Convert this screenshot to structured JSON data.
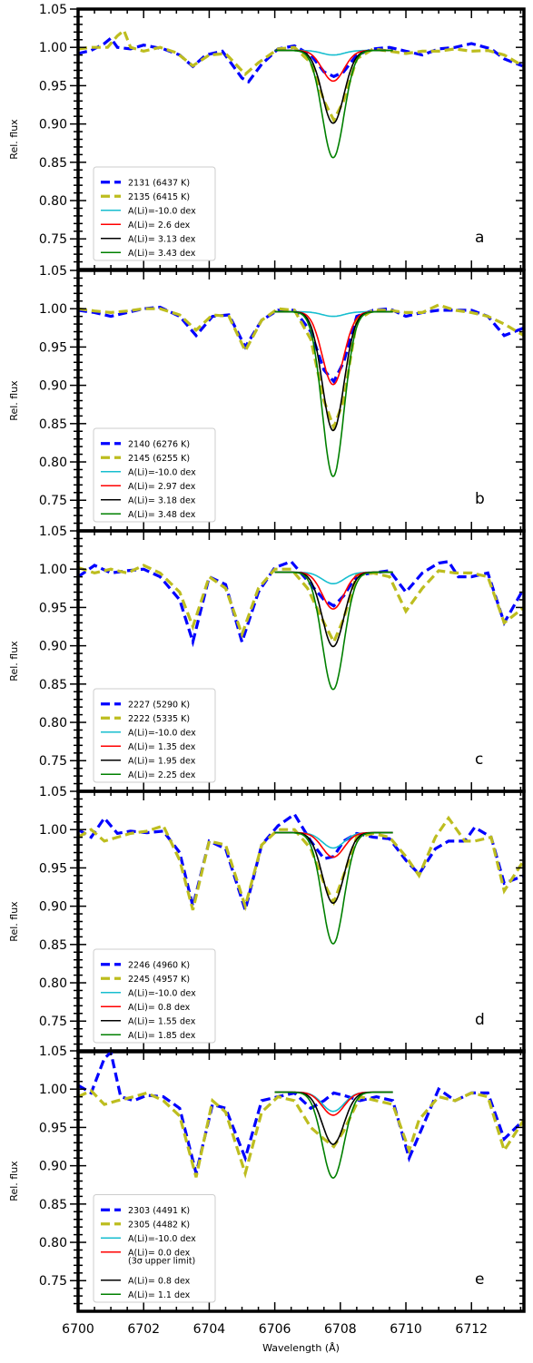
{
  "chart_data": [
    {
      "type": "line",
      "panel_label": "a",
      "ylabel": "Rel. flux",
      "xlabel": "",
      "xlim": [
        6700,
        6713.6
      ],
      "ylim": [
        0.71,
        1.05
      ],
      "yticks": [
        "0.75",
        "0.80",
        "0.85",
        "0.90",
        "0.95",
        "1.00",
        "1.05"
      ],
      "xticks": [],
      "grid": false,
      "legend_position": "lower-left",
      "series": [
        {
          "name": "2131 (6437 K)",
          "color": "#0000ff",
          "style": "dash",
          "x": [
            6700,
            6700.4,
            6700.8,
            6701.0,
            6701.2,
            6701.6,
            6702.0,
            6702.6,
            6703.1,
            6703.5,
            6703.9,
            6704.4,
            6705.0,
            6705.2,
            6705.6,
            6706.1,
            6706.6,
            6707.1,
            6707.5,
            6707.8,
            6708.1,
            6708.5,
            6709.0,
            6709.5,
            6710.0,
            6710.5,
            6711.0,
            6711.5,
            6712.0,
            6712.6,
            6713.0,
            6713.6
          ],
          "y": [
            0.992,
            0.996,
            1.005,
            1.012,
            1.0,
            0.998,
            1.003,
            0.998,
            0.99,
            0.975,
            0.99,
            0.995,
            0.96,
            0.955,
            0.978,
            0.998,
            1.002,
            0.99,
            0.968,
            0.962,
            0.968,
            0.99,
            0.998,
            1.0,
            0.995,
            0.99,
            0.998,
            1.0,
            1.005,
            0.998,
            0.985,
            0.975
          ]
        },
        {
          "name": "2135 (6415 K)",
          "color": "#bdbd1f",
          "style": "dash",
          "x": [
            6700,
            6700.4,
            6700.9,
            6701.2,
            6701.4,
            6701.6,
            6702.0,
            6702.5,
            6703.0,
            6703.5,
            6704.0,
            6704.5,
            6705.1,
            6705.5,
            6706.1,
            6706.6,
            6707.1,
            6707.5,
            6707.8,
            6708.1,
            6708.5,
            6709.0,
            6709.5,
            6710.0,
            6710.5,
            6711.0,
            6711.5,
            6712.0,
            6712.5,
            6713.0,
            6713.6
          ],
          "y": [
            0.998,
            1.0,
            1.0,
            1.015,
            1.022,
            1.0,
            0.995,
            1.0,
            0.993,
            0.976,
            0.99,
            0.992,
            0.965,
            0.98,
            0.998,
            1.0,
            0.98,
            0.93,
            0.905,
            0.93,
            0.985,
            0.998,
            0.995,
            0.992,
            0.995,
            0.995,
            0.998,
            0.995,
            0.996,
            0.99,
            0.975
          ]
        },
        {
          "name": "A(Li)=-10.0 dex",
          "color": "#17becf",
          "style": "solid",
          "depth": 0.006
        },
        {
          "name": "A(Li)= 2.6 dex",
          "color": "#ff0000",
          "style": "solid",
          "depth": 0.04
        },
        {
          "name": "A(Li)= 3.13 dex",
          "color": "#000000",
          "style": "solid",
          "depth": 0.095
        },
        {
          "name": "A(Li)= 3.43 dex",
          "color": "#008000",
          "style": "solid",
          "depth": 0.14
        }
      ]
    },
    {
      "type": "line",
      "panel_label": "b",
      "ylabel": "Rel. flux",
      "xlabel": "",
      "xlim": [
        6700,
        6713.6
      ],
      "ylim": [
        0.71,
        1.05
      ],
      "yticks": [
        "0.75",
        "0.80",
        "0.85",
        "0.90",
        "0.95",
        "1.00",
        "1.05"
      ],
      "xticks": [],
      "grid": false,
      "legend_position": "lower-left",
      "series": [
        {
          "name": "2140 (6276 K)",
          "color": "#0000ff",
          "style": "dash",
          "x": [
            6700,
            6700.5,
            6701.0,
            6701.5,
            6702.0,
            6702.5,
            6703.1,
            6703.6,
            6704.1,
            6704.6,
            6705.1,
            6705.6,
            6706.1,
            6706.6,
            6707.1,
            6707.5,
            6707.8,
            6708.1,
            6708.5,
            6709.0,
            6709.5,
            6710.0,
            6710.5,
            6711.0,
            6711.5,
            6712.0,
            6712.5,
            6713.0,
            6713.6
          ],
          "y": [
            0.998,
            0.995,
            0.99,
            0.995,
            1.0,
            1.002,
            0.99,
            0.965,
            0.99,
            0.992,
            0.95,
            0.985,
            0.998,
            0.998,
            0.97,
            0.92,
            0.905,
            0.93,
            0.99,
            0.998,
            1.0,
            0.99,
            0.995,
            0.998,
            0.998,
            0.998,
            0.99,
            0.965,
            0.975
          ]
        },
        {
          "name": "2145 (6255 K)",
          "color": "#bdbd1f",
          "style": "dash",
          "x": [
            6700,
            6700.5,
            6701.0,
            6701.5,
            6702.0,
            6702.5,
            6703.1,
            6703.6,
            6704.1,
            6704.6,
            6705.1,
            6705.6,
            6706.1,
            6706.6,
            6707.1,
            6707.5,
            6707.8,
            6708.1,
            6708.5,
            6709.0,
            6709.5,
            6710.0,
            6710.5,
            6711.0,
            6711.5,
            6712.0,
            6712.5,
            6713.0,
            6713.6
          ],
          "y": [
            1.0,
            0.997,
            0.995,
            0.997,
            1.0,
            1.0,
            0.992,
            0.972,
            0.992,
            0.99,
            0.945,
            0.985,
            1.0,
            0.998,
            0.96,
            0.88,
            0.845,
            0.88,
            0.985,
            0.998,
            0.998,
            0.995,
            0.995,
            1.005,
            0.998,
            0.995,
            0.99,
            0.98,
            0.965
          ]
        },
        {
          "name": "A(Li)=-10.0 dex",
          "color": "#17becf",
          "style": "solid",
          "depth": 0.006
        },
        {
          "name": "A(Li)= 2.97 dex",
          "color": "#ff0000",
          "style": "solid",
          "depth": 0.095
        },
        {
          "name": "A(Li)= 3.18 dex",
          "color": "#000000",
          "style": "solid",
          "depth": 0.155
        },
        {
          "name": "A(Li)= 3.48 dex",
          "color": "#008000",
          "style": "solid",
          "depth": 0.215
        }
      ]
    },
    {
      "type": "line",
      "panel_label": "c",
      "ylabel": "Rel. flux",
      "xlabel": "",
      "xlim": [
        6700,
        6713.6
      ],
      "ylim": [
        0.71,
        1.05
      ],
      "yticks": [
        "0.75",
        "0.80",
        "0.85",
        "0.90",
        "0.95",
        "1.00",
        "1.05"
      ],
      "xticks": [],
      "grid": false,
      "legend_position": "lower-left",
      "series": [
        {
          "name": "2227 (5290 K)",
          "color": "#0000ff",
          "style": "dash",
          "x": [
            6700,
            6700.5,
            6701.0,
            6701.5,
            6702.0,
            6702.5,
            6703.1,
            6703.5,
            6704.0,
            6704.5,
            6705.0,
            6705.5,
            6706.0,
            6706.5,
            6707.0,
            6707.5,
            6707.8,
            6708.1,
            6708.5,
            6709.0,
            6709.5,
            6710.0,
            6710.5,
            6711.0,
            6711.3,
            6711.6,
            6712.0,
            6712.5,
            6713.0,
            6713.6
          ],
          "y": [
            0.99,
            1.005,
            0.995,
            0.998,
            1.0,
            0.99,
            0.96,
            0.905,
            0.99,
            0.98,
            0.905,
            0.97,
            1.002,
            1.01,
            0.985,
            0.96,
            0.952,
            0.965,
            0.992,
            0.995,
            0.998,
            0.97,
            0.995,
            1.008,
            1.01,
            0.99,
            0.99,
            0.995,
            0.93,
            0.975
          ]
        },
        {
          "name": "2222 (5335 K)",
          "color": "#bdbd1f",
          "style": "dash",
          "x": [
            6700,
            6700.5,
            6701.0,
            6701.5,
            6702.0,
            6702.5,
            6703.1,
            6703.5,
            6704.0,
            6704.5,
            6705.0,
            6705.5,
            6706.0,
            6706.5,
            6707.0,
            6707.5,
            6707.8,
            6708.1,
            6708.5,
            6709.0,
            6709.5,
            6710.0,
            6710.5,
            6711.0,
            6711.5,
            6712.0,
            6712.5,
            6713.0,
            6713.6
          ],
          "y": [
            1.002,
            0.995,
            1.0,
            0.995,
            1.005,
            0.995,
            0.97,
            0.925,
            0.99,
            0.975,
            0.915,
            0.975,
            1.0,
            1.0,
            0.975,
            0.93,
            0.905,
            0.935,
            0.992,
            0.995,
            0.99,
            0.945,
            0.975,
            0.998,
            0.995,
            0.995,
            0.99,
            0.93,
            0.95
          ]
        },
        {
          "name": "A(Li)=-10.0 dex",
          "color": "#17becf",
          "style": "solid",
          "depth": 0.015
        },
        {
          "name": "A(Li)= 1.35 dex",
          "color": "#ff0000",
          "style": "solid",
          "depth": 0.048
        },
        {
          "name": "A(Li)= 1.95 dex",
          "color": "#000000",
          "style": "solid",
          "depth": 0.097
        },
        {
          "name": "A(Li)= 2.25 dex",
          "color": "#008000",
          "style": "solid",
          "depth": 0.153
        }
      ]
    },
    {
      "type": "line",
      "panel_label": "d",
      "ylabel": "Rel. flux",
      "xlabel": "",
      "xlim": [
        6700,
        6713.6
      ],
      "ylim": [
        0.71,
        1.05
      ],
      "yticks": [
        "0.75",
        "0.80",
        "0.85",
        "0.90",
        "0.95",
        "1.00",
        "1.05"
      ],
      "xticks": [],
      "grid": false,
      "legend_position": "lower-left",
      "series": [
        {
          "name": "2246 (4960 K)",
          "color": "#0000ff",
          "style": "dash",
          "x": [
            6700,
            6700.4,
            6700.8,
            6701.2,
            6701.6,
            6702.1,
            6702.6,
            6703.1,
            6703.5,
            6704.0,
            6704.5,
            6705.1,
            6705.6,
            6706.1,
            6706.6,
            6707.1,
            6707.5,
            6707.8,
            6708.1,
            6708.5,
            6709.0,
            6709.5,
            6710.0,
            6710.4,
            6710.9,
            6711.3,
            6711.8,
            6712.1,
            6712.6,
            6713.0,
            6713.6
          ],
          "y": [
            1.0,
            0.99,
            1.015,
            0.995,
            0.998,
            0.996,
            0.998,
            0.97,
            0.9,
            0.985,
            0.975,
            0.895,
            0.98,
            1.005,
            1.02,
            0.985,
            0.962,
            0.965,
            0.985,
            0.995,
            0.99,
            0.988,
            0.96,
            0.942,
            0.975,
            0.985,
            0.985,
            1.003,
            0.99,
            0.93,
            0.94
          ]
        },
        {
          "name": "2245 (4957 K)",
          "color": "#bdbd1f",
          "style": "dash",
          "x": [
            6700,
            6700.4,
            6700.8,
            6701.2,
            6701.6,
            6702.1,
            6702.6,
            6703.1,
            6703.5,
            6704.0,
            6704.5,
            6705.1,
            6705.6,
            6706.1,
            6706.6,
            6707.1,
            6707.5,
            6707.8,
            6708.1,
            6708.5,
            6709.0,
            6709.5,
            6710.0,
            6710.4,
            6710.9,
            6711.3,
            6711.8,
            6712.1,
            6712.6,
            6713.0,
            6713.6
          ],
          "y": [
            0.99,
            1.0,
            0.985,
            0.99,
            0.995,
            0.998,
            1.005,
            0.96,
            0.895,
            0.985,
            0.98,
            0.9,
            0.98,
            1.0,
            1.0,
            0.975,
            0.93,
            0.905,
            0.94,
            0.99,
            0.995,
            0.99,
            0.965,
            0.94,
            0.99,
            1.015,
            0.985,
            0.985,
            0.99,
            0.92,
            0.96
          ]
        },
        {
          "name": "A(Li)=-10.0 dex",
          "color": "#17becf",
          "style": "solid",
          "depth": 0.02
        },
        {
          "name": "A(Li)= 0.8 dex",
          "color": "#ff0000",
          "style": "solid",
          "depth": 0.032
        },
        {
          "name": "A(Li)= 1.55 dex",
          "color": "#000000",
          "style": "solid",
          "depth": 0.092
        },
        {
          "name": "A(Li)= 1.85 dex",
          "color": "#008000",
          "style": "solid",
          "depth": 0.145
        }
      ]
    },
    {
      "type": "line",
      "panel_label": "e",
      "ylabel": "Rel. flux",
      "xlabel": "Wavelength (Å)",
      "xlim": [
        6700,
        6713.6
      ],
      "ylim": [
        0.71,
        1.05
      ],
      "yticks": [
        "0.75",
        "0.80",
        "0.85",
        "0.90",
        "0.95",
        "1.00",
        "1.05"
      ],
      "xticks": [
        "6700",
        "6702",
        "6704",
        "6706",
        "6708",
        "6710",
        "6712"
      ],
      "grid": false,
      "legend_position": "lower-left",
      "series": [
        {
          "name": "2303 (4491 K)",
          "color": "#0000ff",
          "style": "dash",
          "x": [
            6700,
            6700.4,
            6700.8,
            6701.0,
            6701.3,
            6701.7,
            6702.1,
            6702.6,
            6703.1,
            6703.6,
            6704.1,
            6704.5,
            6705.1,
            6705.6,
            6706.1,
            6706.6,
            6707.1,
            6707.5,
            6707.8,
            6708.1,
            6708.6,
            6709.1,
            6709.6,
            6710.1,
            6710.4,
            6711.0,
            6711.5,
            6712.0,
            6712.5,
            6713.0,
            6713.6
          ],
          "y": [
            1.005,
            0.995,
            1.04,
            1.048,
            0.99,
            0.985,
            0.992,
            0.99,
            0.975,
            0.89,
            0.98,
            0.975,
            0.91,
            0.985,
            0.99,
            0.995,
            0.975,
            0.985,
            0.995,
            0.992,
            0.985,
            0.99,
            0.985,
            0.91,
            0.94,
            1.0,
            0.985,
            0.995,
            0.995,
            0.935,
            0.96
          ]
        },
        {
          "name": "2305 (4482 K)",
          "color": "#bdbd1f",
          "style": "dash",
          "x": [
            6700,
            6700.4,
            6700.8,
            6701.2,
            6701.7,
            6702.1,
            6702.6,
            6703.1,
            6703.6,
            6704.1,
            6704.5,
            6705.1,
            6705.6,
            6706.1,
            6706.6,
            6707.1,
            6707.5,
            6707.8,
            6708.1,
            6708.6,
            6709.1,
            6709.6,
            6710.1,
            6710.4,
            6711.0,
            6711.5,
            6712.0,
            6712.5,
            6713.0,
            6713.6
          ],
          "y": [
            0.99,
            0.998,
            0.98,
            0.985,
            0.99,
            0.995,
            0.985,
            0.965,
            0.885,
            0.985,
            0.97,
            0.89,
            0.97,
            0.99,
            0.985,
            0.95,
            0.935,
            0.925,
            0.945,
            0.99,
            0.985,
            0.98,
            0.92,
            0.96,
            0.99,
            0.985,
            0.995,
            0.99,
            0.92,
            0.96
          ]
        },
        {
          "name": "A(Li)=-10.0 dex",
          "color": "#17becf",
          "style": "solid",
          "depth": 0.025
        },
        {
          "name": "A(Li)= 0.0 dex",
          "note": "(3σ upper limit)",
          "color": "#ff0000",
          "style": "solid",
          "depth": 0.03
        },
        {
          "name": "A(Li)= 0.8 dex",
          "color": "#000000",
          "style": "solid",
          "depth": 0.068
        },
        {
          "name": "A(Li)= 1.1 dex",
          "color": "#008000",
          "style": "solid",
          "depth": 0.112
        }
      ]
    }
  ]
}
